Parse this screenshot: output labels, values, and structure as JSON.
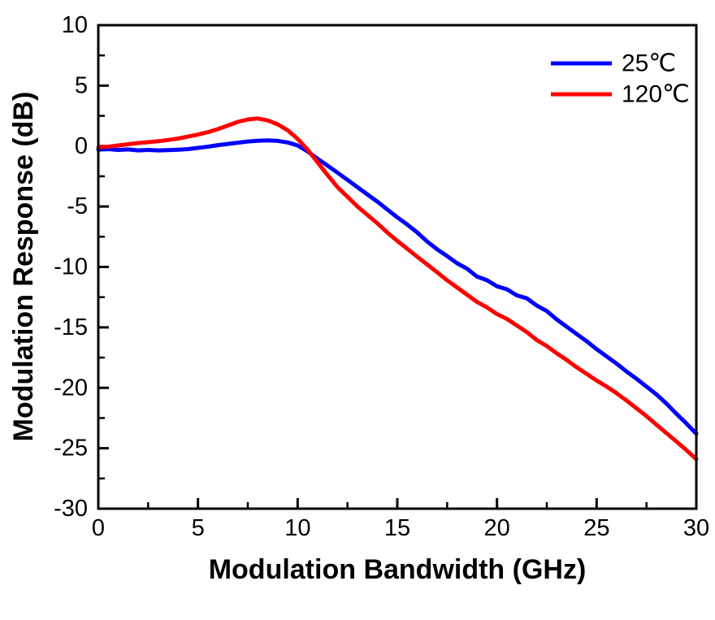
{
  "figure": {
    "background_color": "#ffffff",
    "frame_color": "#000000"
  },
  "axes": {
    "x": {
      "label": "Modulation Bandwidth (GHz)",
      "min": 0,
      "max": 30,
      "major_ticks": [
        0,
        5,
        10,
        15,
        20,
        25,
        30
      ],
      "minor_ticks": [
        2.5,
        7.5,
        12.5,
        17.5,
        22.5,
        27.5
      ]
    },
    "y": {
      "label": "Modulation Response (dB)",
      "min": -30,
      "max": 10,
      "major_ticks": [
        10,
        5,
        0,
        -5,
        -10,
        -15,
        -20,
        -25,
        -30
      ],
      "minor_ticks": [
        7.5,
        2.5,
        -2.5,
        -7.5,
        -12.5,
        -17.5,
        -22.5,
        -27.5
      ]
    }
  },
  "legend": [
    {
      "label": "25℃",
      "color": "#0000ff"
    },
    {
      "label": "120℃",
      "color": "#ff0000"
    }
  ],
  "chart_data": {
    "type": "line",
    "title": "",
    "xlabel": "Modulation Bandwidth (GHz)",
    "ylabel": "Modulation Response (dB)",
    "xlim": [
      0,
      30
    ],
    "ylim": [
      -30,
      10
    ],
    "grid": false,
    "legend_position": "top-right",
    "x": [
      0,
      0.5,
      1,
      1.5,
      2,
      2.5,
      3,
      3.5,
      4,
      4.5,
      5,
      5.5,
      6,
      6.5,
      7,
      7.5,
      8,
      8.5,
      9,
      9.5,
      10,
      10.5,
      11,
      11.5,
      12,
      12.5,
      13,
      13.5,
      14,
      14.5,
      15,
      15.5,
      16,
      16.5,
      17,
      17.5,
      18,
      18.5,
      19,
      19.5,
      20,
      20.5,
      21,
      21.5,
      22,
      22.5,
      23,
      23.5,
      24,
      24.5,
      25,
      25.5,
      26,
      26.5,
      27,
      27.5,
      28,
      28.5,
      29,
      29.5,
      30
    ],
    "series": [
      {
        "name": "25℃",
        "color": "#0000ff",
        "y": [
          -0.3,
          -0.25,
          -0.32,
          -0.28,
          -0.36,
          -0.32,
          -0.36,
          -0.33,
          -0.3,
          -0.25,
          -0.15,
          -0.05,
          0.08,
          0.18,
          0.28,
          0.38,
          0.44,
          0.47,
          0.43,
          0.3,
          0.05,
          -0.45,
          -1.05,
          -1.62,
          -2.2,
          -2.8,
          -3.4,
          -4.0,
          -4.6,
          -5.25,
          -5.9,
          -6.5,
          -7.15,
          -7.9,
          -8.55,
          -9.1,
          -9.7,
          -10.15,
          -10.8,
          -11.1,
          -11.6,
          -11.85,
          -12.35,
          -12.6,
          -13.2,
          -13.65,
          -14.35,
          -14.95,
          -15.55,
          -16.15,
          -16.8,
          -17.4,
          -18.0,
          -18.65,
          -19.25,
          -19.9,
          -20.55,
          -21.3,
          -22.15,
          -22.95,
          -23.8
        ]
      },
      {
        "name": "120℃",
        "color": "#ff0000",
        "y": [
          -0.1,
          -0.05,
          0.05,
          0.15,
          0.25,
          0.32,
          0.4,
          0.5,
          0.62,
          0.78,
          0.95,
          1.15,
          1.4,
          1.7,
          2.0,
          2.2,
          2.28,
          2.12,
          1.8,
          1.3,
          0.6,
          -0.3,
          -1.35,
          -2.4,
          -3.4,
          -4.2,
          -5.0,
          -5.7,
          -6.4,
          -7.15,
          -7.85,
          -8.5,
          -9.15,
          -9.8,
          -10.45,
          -11.1,
          -11.7,
          -12.3,
          -12.9,
          -13.35,
          -13.9,
          -14.3,
          -14.85,
          -15.4,
          -16.05,
          -16.55,
          -17.15,
          -17.7,
          -18.3,
          -18.85,
          -19.4,
          -19.9,
          -20.45,
          -21.05,
          -21.7,
          -22.35,
          -23.05,
          -23.75,
          -24.45,
          -25.15,
          -25.9
        ]
      }
    ]
  }
}
